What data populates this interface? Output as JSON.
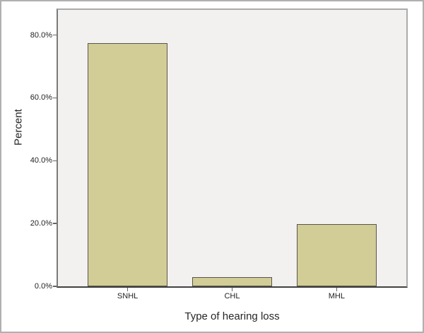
{
  "chart_data": {
    "type": "bar",
    "title": "",
    "xlabel": "Type of hearing loss",
    "ylabel": "Percent",
    "categories": [
      "SNHL",
      "CHL",
      "MHL"
    ],
    "values": [
      77.4,
      2.9,
      19.7
    ],
    "y_tick_values": [
      0,
      20,
      40,
      60,
      80
    ],
    "y_tick_labels": [
      "0.0%",
      "20.0%",
      "40.0%",
      "60.0%",
      "80.0%"
    ],
    "ylim": [
      0,
      88
    ],
    "grid": false,
    "legend": "none",
    "colors": {
      "bar_fill": "#d2cd96",
      "bar_border": "#57564c",
      "plot_background": "#f2f1f0",
      "bottom_axis": "#424242",
      "left_axis": "#7a7a7a",
      "frame": "#ababab",
      "text": "#1f1f1f"
    }
  }
}
